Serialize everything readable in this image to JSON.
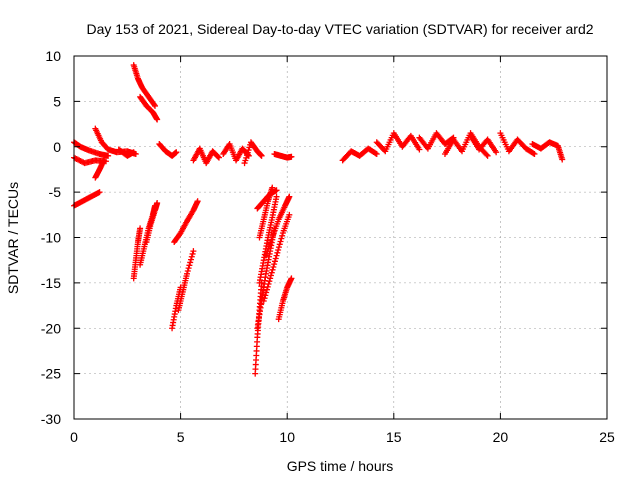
{
  "chart_data": {
    "type": "scatter",
    "title": "Day 153 of 2021, Sidereal Day-to-day VTEC variation (SDTVAR) for receiver ard2",
    "xlabel": "GPS time / hours",
    "ylabel": "SDTVAR / TECUs",
    "xlim": [
      0,
      25
    ],
    "ylim": [
      -30,
      10
    ],
    "xticks": [
      0,
      5,
      10,
      15,
      20,
      25
    ],
    "yticks": [
      -30,
      -25,
      -20,
      -15,
      -10,
      -5,
      0,
      5,
      10
    ],
    "grid": true,
    "marker": "+",
    "color": "#ff0000",
    "tracks": [
      {
        "x": [
          0.0,
          0.4,
          0.8,
          1.2
        ],
        "y": [
          -6.5,
          -6.0,
          -5.5,
          -5.0
        ]
      },
      {
        "x": [
          0.0,
          0.3,
          0.7,
          1.2,
          1.6
        ],
        "y": [
          0.5,
          0.0,
          -0.4,
          -0.8,
          -1.0
        ]
      },
      {
        "x": [
          0.0,
          0.5,
          1.0,
          1.5
        ],
        "y": [
          -1.2,
          -1.8,
          -1.5,
          -1.6
        ]
      },
      {
        "x": [
          1.0,
          1.3,
          1.6,
          2.0,
          2.5,
          2.9
        ],
        "y": [
          2.0,
          0.5,
          -0.3,
          -0.6,
          -0.5,
          -0.8
        ]
      },
      {
        "x": [
          1.0,
          1.2,
          1.4
        ],
        "y": [
          -3.4,
          -2.5,
          -1.5
        ]
      },
      {
        "x": [
          2.1,
          2.5,
          2.8
        ],
        "y": [
          -0.3,
          -1.0,
          -0.6
        ]
      },
      {
        "x": [
          2.8,
          3.0,
          3.2,
          3.5,
          3.8
        ],
        "y": [
          9.0,
          7.5,
          6.5,
          5.5,
          4.5
        ]
      },
      {
        "x": [
          3.1,
          3.4,
          3.7,
          3.9
        ],
        "y": [
          5.5,
          4.5,
          3.8,
          3.0
        ]
      },
      {
        "x": [
          2.8,
          2.9,
          3.0,
          3.1
        ],
        "y": [
          -14.5,
          -12.5,
          -10.5,
          -9.0
        ]
      },
      {
        "x": [
          3.1,
          3.3,
          3.5,
          3.7,
          3.8
        ],
        "y": [
          -13.0,
          -11.0,
          -9.0,
          -7.5,
          -6.5
        ]
      },
      {
        "x": [
          3.4,
          3.6,
          3.8,
          3.9
        ],
        "y": [
          -10.5,
          -8.5,
          -7.0,
          -6.2
        ]
      },
      {
        "x": [
          4.0,
          4.3,
          4.6,
          4.8
        ],
        "y": [
          0.3,
          -0.5,
          -1.0,
          -0.6
        ]
      },
      {
        "x": [
          4.6,
          4.8,
          5.0
        ],
        "y": [
          -20.0,
          -17.5,
          -15.5
        ]
      },
      {
        "x": [
          4.9,
          5.1,
          5.3,
          5.6
        ],
        "y": [
          -18.0,
          -16.0,
          -14.0,
          -11.5
        ]
      },
      {
        "x": [
          4.7,
          5.0,
          5.3,
          5.6,
          5.8
        ],
        "y": [
          -10.5,
          -9.5,
          -8.2,
          -7.0,
          -6.0
        ]
      },
      {
        "x": [
          5.6,
          5.9,
          6.2,
          6.5,
          6.8
        ],
        "y": [
          -1.5,
          -0.2,
          -1.8,
          -0.5,
          -1.2
        ]
      },
      {
        "x": [
          7.0,
          7.3,
          7.6,
          7.9,
          8.2
        ],
        "y": [
          -0.8,
          0.3,
          -1.5,
          -0.2,
          -1.0
        ]
      },
      {
        "x": [
          8.0,
          8.3,
          8.6,
          8.8
        ],
        "y": [
          -1.8,
          0.5,
          -0.5,
          -1.0
        ]
      },
      {
        "x": [
          8.5,
          8.6,
          8.7,
          8.8
        ],
        "y": [
          -25.0,
          -21.0,
          -18.0,
          -15.0
        ]
      },
      {
        "x": [
          8.6,
          8.8,
          9.0,
          9.2,
          9.4
        ],
        "y": [
          -20.0,
          -17.0,
          -14.0,
          -11.5,
          -9.0
        ]
      },
      {
        "x": [
          8.7,
          8.9,
          9.1,
          9.3,
          9.5
        ],
        "y": [
          -15.0,
          -12.5,
          -10.0,
          -7.8,
          -5.5
        ]
      },
      {
        "x": [
          8.7,
          8.9,
          9.1,
          9.3
        ],
        "y": [
          -10.0,
          -8.0,
          -6.0,
          -4.5
        ]
      },
      {
        "x": [
          8.6,
          8.9,
          9.2,
          9.5
        ],
        "y": [
          -6.8,
          -6.0,
          -5.2,
          -4.8
        ]
      },
      {
        "x": [
          8.9,
          9.2,
          9.5,
          9.8,
          10.1
        ],
        "y": [
          -17.0,
          -14.5,
          -12.0,
          -9.5,
          -7.5
        ]
      },
      {
        "x": [
          9.0,
          9.3,
          9.6,
          9.9,
          10.1
        ],
        "y": [
          -12.0,
          -10.0,
          -8.0,
          -6.5,
          -5.5
        ]
      },
      {
        "x": [
          9.6,
          9.8,
          10.0,
          10.2
        ],
        "y": [
          -19.0,
          -17.0,
          -15.5,
          -14.5
        ]
      },
      {
        "x": [
          9.4,
          9.7,
          10.0,
          10.2
        ],
        "y": [
          -0.8,
          -1.0,
          -1.2,
          -1.1
        ]
      },
      {
        "x": [
          12.6,
          13.0,
          13.4,
          13.8,
          14.2
        ],
        "y": [
          -1.5,
          -0.5,
          -1.0,
          -0.2,
          -0.8
        ]
      },
      {
        "x": [
          14.2,
          14.6,
          15.0,
          15.4,
          15.8,
          16.2
        ],
        "y": [
          0.5,
          -0.5,
          1.5,
          0.0,
          1.2,
          -0.3
        ]
      },
      {
        "x": [
          16.2,
          16.6,
          17.0,
          17.4,
          17.8
        ],
        "y": [
          1.0,
          -0.2,
          1.5,
          0.3,
          1.0
        ]
      },
      {
        "x": [
          17.4,
          17.8,
          18.2,
          18.6,
          19.0,
          19.4
        ],
        "y": [
          -0.8,
          0.8,
          -0.5,
          1.5,
          0.0,
          -1.0
        ]
      },
      {
        "x": [
          18.6,
          19.0,
          19.4,
          19.8
        ],
        "y": [
          1.2,
          -0.3,
          0.8,
          -0.6
        ]
      },
      {
        "x": [
          20.0,
          20.4,
          20.8,
          21.2,
          21.6
        ],
        "y": [
          1.5,
          -0.5,
          0.8,
          -0.2,
          -0.8
        ]
      },
      {
        "x": [
          21.5,
          21.9,
          22.3,
          22.7,
          22.9
        ],
        "y": [
          0.3,
          -0.2,
          0.5,
          0.1,
          -1.4
        ]
      }
    ]
  }
}
